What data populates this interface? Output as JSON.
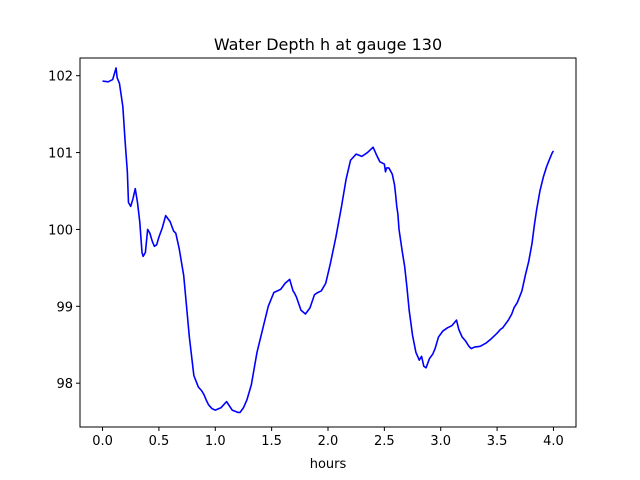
{
  "chart_data": {
    "type": "line",
    "title": "Water Depth h at gauge 130",
    "xlabel": "hours",
    "ylabel": "",
    "xlim": [
      -0.2,
      4.2
    ],
    "ylim": [
      97.43,
      102.23
    ],
    "xticks": [
      0.0,
      0.5,
      1.0,
      1.5,
      2.0,
      2.5,
      3.0,
      3.5,
      4.0
    ],
    "xtick_labels": [
      "0.0",
      "0.5",
      "1.0",
      "1.5",
      "2.0",
      "2.5",
      "3.0",
      "3.5",
      "4.0"
    ],
    "yticks": [
      98,
      99,
      100,
      101,
      102
    ],
    "ytick_labels": [
      "98",
      "99",
      "100",
      "101",
      "102"
    ],
    "grid": false,
    "line_color": "#0000ff",
    "series": [
      {
        "x": [
          0.0,
          0.05,
          0.09,
          0.11,
          0.12,
          0.13,
          0.15,
          0.18,
          0.2,
          0.22,
          0.23,
          0.25,
          0.27,
          0.29,
          0.31,
          0.33,
          0.34,
          0.35,
          0.36,
          0.38,
          0.4,
          0.42,
          0.44,
          0.46,
          0.48,
          0.5,
          0.53,
          0.56,
          0.6,
          0.63,
          0.65,
          0.68,
          0.72,
          0.77,
          0.81,
          0.85,
          0.88,
          0.9,
          0.92,
          0.94,
          0.97,
          1.0,
          1.05,
          1.1,
          1.15,
          1.2,
          1.22,
          1.25,
          1.28,
          1.32,
          1.37,
          1.42,
          1.47,
          1.52,
          1.58,
          1.62,
          1.66,
          1.69,
          1.7,
          1.72,
          1.76,
          1.8,
          1.84,
          1.88,
          1.91,
          1.94,
          1.98,
          2.02,
          2.07,
          2.12,
          2.16,
          2.2,
          2.25,
          2.3,
          2.35,
          2.4,
          2.43,
          2.46,
          2.5,
          2.51,
          2.52,
          2.54,
          2.57,
          2.59,
          2.6,
          2.61,
          2.62,
          2.63,
          2.66,
          2.68,
          2.7,
          2.72,
          2.75,
          2.78,
          2.81,
          2.83,
          2.85,
          2.87,
          2.9,
          2.93,
          2.95,
          2.98,
          3.02,
          3.06,
          3.1,
          3.14,
          3.16,
          3.19,
          3.22,
          3.25,
          3.27,
          3.3,
          3.35,
          3.4,
          3.45,
          3.5,
          3.53,
          3.55,
          3.6,
          3.63,
          3.65,
          3.68,
          3.72,
          3.75,
          3.78,
          3.81,
          3.83,
          3.85,
          3.88,
          3.91,
          3.94,
          3.97,
          3.99,
          4.0
        ],
        "y": [
          101.93,
          101.92,
          101.95,
          102.05,
          102.1,
          101.97,
          101.9,
          101.6,
          101.15,
          100.75,
          100.35,
          100.3,
          100.4,
          100.53,
          100.35,
          100.1,
          99.9,
          99.7,
          99.65,
          99.7,
          100.0,
          99.95,
          99.85,
          99.78,
          99.8,
          99.9,
          100.02,
          100.18,
          100.1,
          99.98,
          99.95,
          99.75,
          99.4,
          98.6,
          98.1,
          97.95,
          97.9,
          97.85,
          97.78,
          97.72,
          97.67,
          97.65,
          97.68,
          97.76,
          97.65,
          97.62,
          97.62,
          97.68,
          97.78,
          97.98,
          98.4,
          98.7,
          99.0,
          99.18,
          99.22,
          99.3,
          99.35,
          99.2,
          99.18,
          99.12,
          98.95,
          98.9,
          98.98,
          99.15,
          99.18,
          99.2,
          99.3,
          99.55,
          99.9,
          100.3,
          100.65,
          100.9,
          100.98,
          100.95,
          101.0,
          101.07,
          100.97,
          100.88,
          100.85,
          100.75,
          100.8,
          100.8,
          100.72,
          100.58,
          100.45,
          100.3,
          100.2,
          100.0,
          99.7,
          99.52,
          99.25,
          98.95,
          98.62,
          98.4,
          98.3,
          98.35,
          98.22,
          98.2,
          98.32,
          98.38,
          98.45,
          98.6,
          98.68,
          98.72,
          98.75,
          98.82,
          98.7,
          98.6,
          98.55,
          98.48,
          98.45,
          98.47,
          98.48,
          98.52,
          98.58,
          98.65,
          98.7,
          98.72,
          98.82,
          98.9,
          98.98,
          99.05,
          99.2,
          99.4,
          99.58,
          99.82,
          100.05,
          100.25,
          100.5,
          100.68,
          100.82,
          100.93,
          101.0,
          101.02
        ]
      }
    ]
  }
}
